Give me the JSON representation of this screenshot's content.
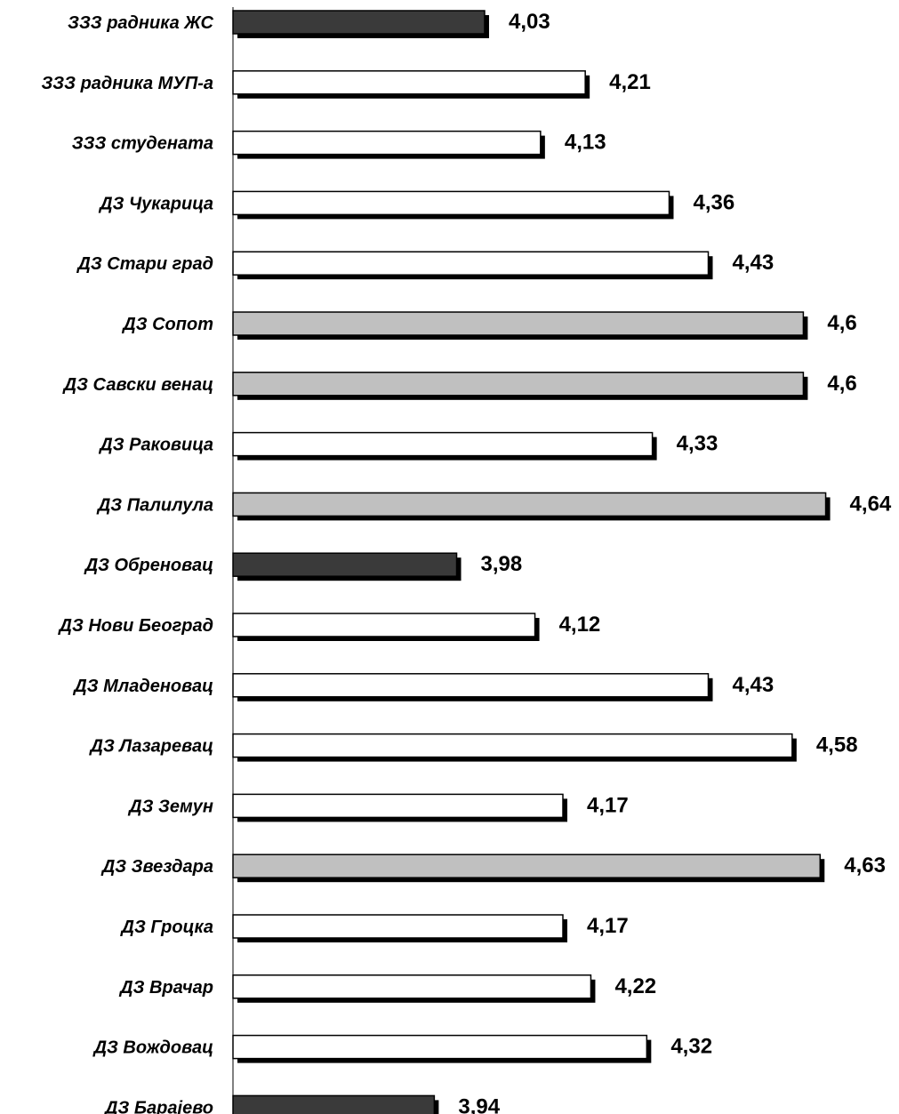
{
  "chart_data": {
    "type": "bar",
    "orientation": "horizontal",
    "title": "",
    "xlabel": "",
    "ylabel": "",
    "xlim": [
      3.58,
      4.69
    ],
    "grid": false,
    "legend": "none",
    "categories": [
      "ЗЗЗ радника ЖС",
      "ЗЗЗ радника МУП-а",
      "ЗЗЗ студената",
      "ДЗ Чукарица",
      "ДЗ Стари град",
      "ДЗ Сопот",
      "ДЗ Савски венац",
      "ДЗ Раковица",
      "ДЗ Палилула",
      "ДЗ Обреновац",
      "ДЗ Нови Београд",
      "ДЗ Младеновац",
      "ДЗ Лазаревац",
      "ДЗ Земун",
      "ДЗ Звездара",
      "ДЗ Гроцка",
      "ДЗ Врачар",
      "ДЗ Вождовац",
      "ДЗ Барајево"
    ],
    "values": [
      4.03,
      4.21,
      4.13,
      4.36,
      4.43,
      4.6,
      4.6,
      4.33,
      4.64,
      3.98,
      4.12,
      4.43,
      4.58,
      4.17,
      4.63,
      4.17,
      4.22,
      4.32,
      3.94
    ],
    "value_labels": [
      "4,03",
      "4,21",
      "4,13",
      "4,36",
      "4,43",
      "4,6",
      "4,6",
      "4,33",
      "4,64",
      "3,98",
      "4,12",
      "4,43",
      "4,58",
      "4,17",
      "4,63",
      "4,17",
      "4,22",
      "4,32",
      "3,94"
    ],
    "colors": {
      "low": "#3a3a3a",
      "mid": "#ffffff",
      "high": "#c0c0c0"
    },
    "color_groups": [
      "low",
      "mid",
      "mid",
      "mid",
      "mid",
      "high",
      "high",
      "mid",
      "high",
      "low",
      "mid",
      "mid",
      "mid",
      "mid",
      "high",
      "mid",
      "mid",
      "mid",
      "low"
    ]
  }
}
